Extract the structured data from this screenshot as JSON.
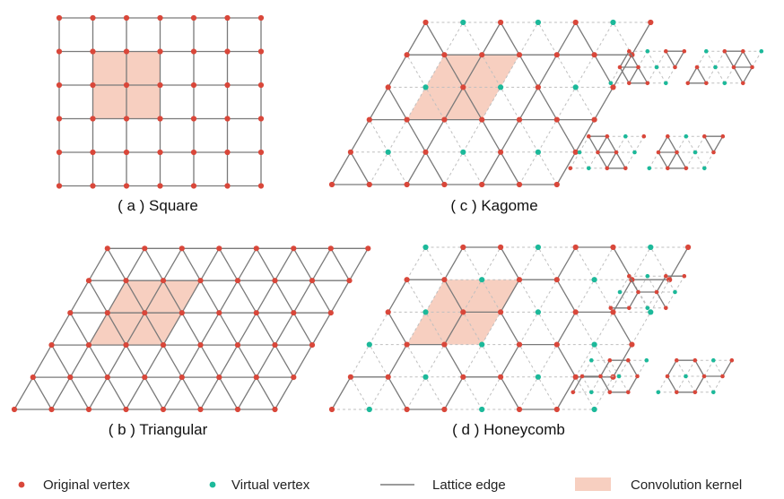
{
  "colors": {
    "original_vertex": "#d9473a",
    "virtual_vertex": "#1cb99a",
    "lattice_edge": "#7a7a7a",
    "virtual_edge": "#bfbfbf",
    "kernel_fill": "#f7cfc0"
  },
  "panels": [
    {
      "id": "a",
      "lattice": "square",
      "caption": "( a )  Square"
    },
    {
      "id": "b",
      "lattice": "triangular",
      "caption": "( b )  Triangular"
    },
    {
      "id": "c",
      "lattice": "kagome",
      "caption": "( c )  Kagome"
    },
    {
      "id": "d",
      "lattice": "honeycomb",
      "caption": "( d )  Honeycomb"
    }
  ],
  "legend": [
    {
      "key": "original_vertex",
      "symbol": "dot",
      "label": "Original vertex"
    },
    {
      "key": "virtual_vertex",
      "symbol": "dot",
      "label": "Virtual vertex"
    },
    {
      "key": "lattice_edge",
      "symbol": "line",
      "label": "Lattice edge"
    },
    {
      "key": "kernel_fill",
      "symbol": "rect",
      "label": "Convolution kernel"
    }
  ]
}
